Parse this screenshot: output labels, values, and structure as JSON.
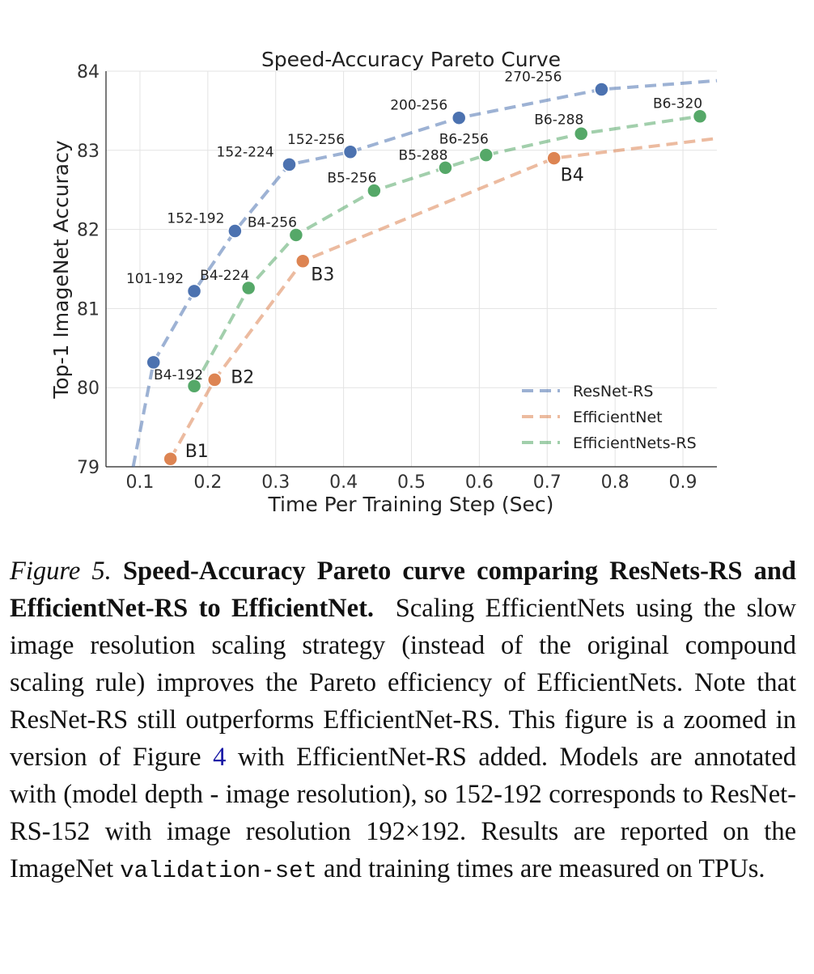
{
  "chart_data": {
    "type": "line",
    "title": "Speed-Accuracy Pareto Curve",
    "xlabel": "Time Per Training Step (Sec)",
    "ylabel": "Top-1 ImageNet Accuracy",
    "xlim": [
      0.05,
      0.95
    ],
    "ylim": [
      79,
      84
    ],
    "xticks": [
      "0.1",
      "0.2",
      "0.3",
      "0.4",
      "0.5",
      "0.6",
      "0.7",
      "0.8",
      "0.9"
    ],
    "yticks": [
      "79",
      "80",
      "81",
      "82",
      "83",
      "84"
    ],
    "grid": true,
    "legend_position": "bottom-right",
    "series": [
      {
        "name": "ResNet-RS",
        "color": "#4c72b0",
        "points": [
          {
            "x": 0.12,
            "y": 80.32,
            "label": ""
          },
          {
            "x": 0.18,
            "y": 81.22,
            "label": "101-192"
          },
          {
            "x": 0.24,
            "y": 81.98,
            "label": "152-192"
          },
          {
            "x": 0.32,
            "y": 82.82,
            "label": "152-224"
          },
          {
            "x": 0.41,
            "y": 82.98,
            "label": "152-256"
          },
          {
            "x": 0.57,
            "y": 83.41,
            "label": "200-256"
          },
          {
            "x": 0.78,
            "y": 83.77,
            "label": "270-256"
          }
        ],
        "line_start": {
          "x": 0.09,
          "y": 79.0
        },
        "line_end": {
          "x": 0.95,
          "y": 83.88
        }
      },
      {
        "name": "EfficientNet",
        "color": "#dd8452",
        "points": [
          {
            "x": 0.145,
            "y": 79.1,
            "label": "B1"
          },
          {
            "x": 0.21,
            "y": 80.1,
            "label": "B2"
          },
          {
            "x": 0.34,
            "y": 81.6,
            "label": "B3"
          },
          {
            "x": 0.71,
            "y": 82.9,
            "label": "B4"
          }
        ],
        "line_end": {
          "x": 0.95,
          "y": 83.15
        }
      },
      {
        "name": "EfficientNets-RS",
        "color": "#55a868",
        "points": [
          {
            "x": 0.18,
            "y": 80.02,
            "label": "B4-192"
          },
          {
            "x": 0.26,
            "y": 81.26,
            "label": "B4-224"
          },
          {
            "x": 0.33,
            "y": 81.93,
            "label": "B4-256"
          },
          {
            "x": 0.445,
            "y": 82.49,
            "label": "B5-256"
          },
          {
            "x": 0.55,
            "y": 82.78,
            "label": "B5-288"
          },
          {
            "x": 0.61,
            "y": 82.94,
            "label": "B6-256"
          },
          {
            "x": 0.75,
            "y": 83.21,
            "label": "B6-288"
          },
          {
            "x": 0.925,
            "y": 83.43,
            "label": "B6-320"
          }
        ]
      }
    ]
  },
  "caption": {
    "figure_number": "Figure 5.",
    "title": "Speed-Accuracy Pareto curve comparing ResNets-RS and EfficientNet-RS to EfficientNet.",
    "text_1": "Scaling EfficientNets using the slow image resolution scaling strategy (instead of the original compound scaling rule) improves the Pareto efficiency of EfficientNets. Note that ResNet-RS still outperforms EfficientNet-RS. This figure is a zoomed in version of Figure",
    "figure_ref": "4",
    "text_2": "with EfficientNet-RS added. Models are annotated with (model depth - image resolution), so 152-192 corresponds to ResNet-RS-152 with image resolution 192×192. Results are reported on the ImageNet",
    "code": "validation-set",
    "text_3": "and training times are measured on TPUs."
  }
}
